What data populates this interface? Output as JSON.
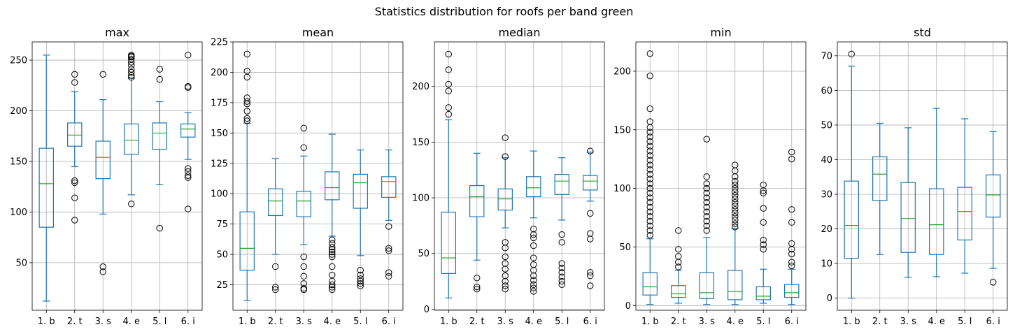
{
  "suptitle": "Statistics distribution for roofs per band green",
  "chart_data": [
    {
      "type": "box",
      "title": "max",
      "categories": [
        "1. b",
        "2. t",
        "3. s",
        "4. e",
        "5. l",
        "6. i"
      ],
      "ylim": [
        3,
        268
      ],
      "yticks": [
        50,
        100,
        150,
        200,
        250
      ],
      "grid": true,
      "boxes": [
        {
          "whislo": 12,
          "q1": 85,
          "med": 128,
          "q3": 163,
          "whishi": 255,
          "fliers": []
        },
        {
          "whislo": 145,
          "q1": 165,
          "med": 176,
          "q3": 188,
          "whishi": 219,
          "fliers": [
            236,
            228,
            131,
            129,
            114,
            92
          ]
        },
        {
          "whislo": 98,
          "q1": 133,
          "med": 154,
          "q3": 170,
          "whishi": 211,
          "fliers": [
            236,
            46,
            41
          ]
        },
        {
          "whislo": 117,
          "q1": 157,
          "med": 171,
          "q3": 187,
          "whishi": 232,
          "fliers": [
            255,
            254,
            253,
            251,
            248,
            245,
            241,
            238,
            235,
            233,
            108
          ]
        },
        {
          "whislo": 127,
          "q1": 162,
          "med": 178,
          "q3": 188,
          "whishi": 209,
          "fliers": [
            241,
            231,
            84
          ]
        },
        {
          "whislo": 152,
          "q1": 174,
          "med": 182,
          "q3": 187,
          "whishi": 198,
          "fliers": [
            255,
            224,
            223,
            143,
            140,
            136,
            134,
            103
          ]
        }
      ]
    },
    {
      "type": "box",
      "title": "mean",
      "categories": [
        "1. b",
        "2. t",
        "3. s",
        "4. e",
        "5. l",
        "6. i"
      ],
      "ylim": [
        4,
        225
      ],
      "yticks": [
        25,
        50,
        75,
        100,
        125,
        150,
        175,
        200,
        225
      ],
      "grid": true,
      "boxes": [
        {
          "whislo": 12,
          "q1": 37,
          "med": 55,
          "q3": 85,
          "whishi": 158,
          "fliers": [
            215,
            201,
            196,
            179,
            176,
            174,
            168,
            162,
            160
          ]
        },
        {
          "whislo": 50,
          "q1": 82,
          "med": 94,
          "q3": 104,
          "whishi": 129,
          "fliers": [
            40,
            23,
            21
          ]
        },
        {
          "whislo": 58,
          "q1": 81,
          "med": 94,
          "q3": 102,
          "whishi": 131,
          "fliers": [
            154,
            138,
            48,
            40,
            32,
            26,
            22,
            21
          ]
        },
        {
          "whislo": 65,
          "q1": 95,
          "med": 105,
          "q3": 118,
          "whishi": 149,
          "fliers": [
            62,
            59,
            56,
            54,
            52,
            50,
            48,
            40,
            33,
            28,
            25,
            23,
            21
          ]
        },
        {
          "whislo": 49,
          "q1": 88,
          "med": 109,
          "q3": 116,
          "whishi": 136,
          "fliers": [
            37,
            33,
            30,
            28,
            26,
            24
          ]
        },
        {
          "whislo": 78,
          "q1": 97,
          "med": 110,
          "q3": 114,
          "whishi": 136,
          "fliers": [
            73,
            55,
            53,
            35,
            32
          ]
        }
      ]
    },
    {
      "type": "box",
      "title": "median",
      "categories": [
        "1. b",
        "2. t",
        "3. s",
        "4. e",
        "5. l",
        "6. i"
      ],
      "ylim": [
        -1,
        240
      ],
      "yticks": [
        0,
        50,
        100,
        150,
        200
      ],
      "grid": true,
      "boxes": [
        {
          "whislo": 10,
          "q1": 32,
          "med": 46,
          "q3": 87,
          "whishi": 170,
          "fliers": [
            229,
            215,
            202,
            196,
            181,
            175
          ]
        },
        {
          "whislo": 44,
          "q1": 83,
          "med": 101,
          "q3": 111,
          "whishi": 140,
          "fliers": [
            28,
            20,
            18
          ]
        },
        {
          "whislo": 73,
          "q1": 89,
          "med": 99,
          "q3": 108,
          "whishi": 136,
          "fliers": [
            154,
            137,
            60,
            55,
            47,
            41,
            36,
            30,
            25,
            21,
            18
          ]
        },
        {
          "whislo": 82,
          "q1": 101,
          "med": 109,
          "q3": 119,
          "whishi": 142,
          "fliers": [
            72,
            67,
            64,
            57,
            46,
            40,
            35,
            30,
            26,
            22,
            19,
            16
          ]
        },
        {
          "whislo": 80,
          "q1": 103,
          "med": 115,
          "q3": 121,
          "whishi": 136,
          "fliers": [
            67,
            60,
            41,
            37,
            33,
            29,
            25,
            22
          ]
        },
        {
          "whislo": 97,
          "q1": 107,
          "med": 115,
          "q3": 120,
          "whishi": 141,
          "fliers": [
            142,
            86,
            68,
            63,
            33,
            30,
            21
          ]
        }
      ]
    },
    {
      "type": "box",
      "title": "min",
      "categories": [
        "1. b",
        "2. t",
        "3. s",
        "4. e",
        "5. l",
        "6. i"
      ],
      "ylim": [
        -4,
        225
      ],
      "yticks": [
        0,
        50,
        100,
        150,
        200
      ],
      "grid": true,
      "boxes": [
        {
          "whislo": 1,
          "q1": 9,
          "med": 16,
          "q3": 28,
          "whishi": 57,
          "fliers": [
            215,
            196,
            168,
            157,
            152,
            148,
            144,
            140,
            136,
            132,
            128,
            124,
            120,
            116,
            112,
            108,
            104,
            100,
            96,
            92,
            88,
            84,
            80,
            76,
            72,
            68,
            64,
            60
          ]
        },
        {
          "whislo": 2,
          "q1": 7,
          "med": 10,
          "q3": 17,
          "whishi": 30,
          "fliers": [
            64,
            48,
            42,
            37,
            33
          ]
        },
        {
          "whislo": 1,
          "q1": 6,
          "med": 11,
          "q3": 28,
          "whishi": 58,
          "fliers": [
            142,
            110,
            104,
            100,
            96,
            92,
            88,
            84,
            80,
            76,
            72,
            68,
            64
          ]
        },
        {
          "whislo": 1,
          "q1": 5,
          "med": 12,
          "q3": 30,
          "whishi": 66,
          "fliers": [
            120,
            115,
            110,
            106,
            103,
            100,
            97,
            94,
            91,
            88,
            85,
            82,
            79,
            76,
            73,
            70,
            67
          ]
        },
        {
          "whislo": 2,
          "q1": 5,
          "med": 8,
          "q3": 16,
          "whishi": 31,
          "fliers": [
            103,
            98,
            96,
            83,
            71,
            56,
            52,
            48
          ]
        },
        {
          "whislo": 1,
          "q1": 7,
          "med": 11,
          "q3": 18,
          "whishi": 31,
          "fliers": [
            131,
            125,
            82,
            71,
            53,
            48,
            44,
            37,
            34
          ]
        }
      ]
    },
    {
      "type": "box",
      "title": "std",
      "categories": [
        "1. b",
        "2. t",
        "3. s",
        "4. e",
        "5. l",
        "6. i"
      ],
      "ylim": [
        -3.5,
        74
      ],
      "yticks": [
        0,
        10,
        20,
        30,
        40,
        50,
        60,
        70
      ],
      "grid": true,
      "boxes": [
        {
          "whislo": 0,
          "q1": 11.5,
          "med": 21,
          "q3": 33.8,
          "whishi": 67,
          "fliers": [
            70.5
          ]
        },
        {
          "whislo": 12.6,
          "q1": 28.2,
          "med": 35.8,
          "q3": 40.8,
          "whishi": 50.5,
          "fliers": []
        },
        {
          "whislo": 6,
          "q1": 13.2,
          "med": 23,
          "q3": 33.4,
          "whishi": 49.2,
          "fliers": []
        },
        {
          "whislo": 6.2,
          "q1": 12.6,
          "med": 21.2,
          "q3": 31.6,
          "whishi": 54.8,
          "fliers": []
        },
        {
          "whislo": 7.2,
          "q1": 16.8,
          "med": 25,
          "q3": 32,
          "whishi": 51.8,
          "fliers": []
        },
        {
          "whislo": 8.6,
          "q1": 23.4,
          "med": 29.8,
          "q3": 35.6,
          "whishi": 48.1,
          "fliers": [
            4.6
          ]
        }
      ]
    }
  ]
}
